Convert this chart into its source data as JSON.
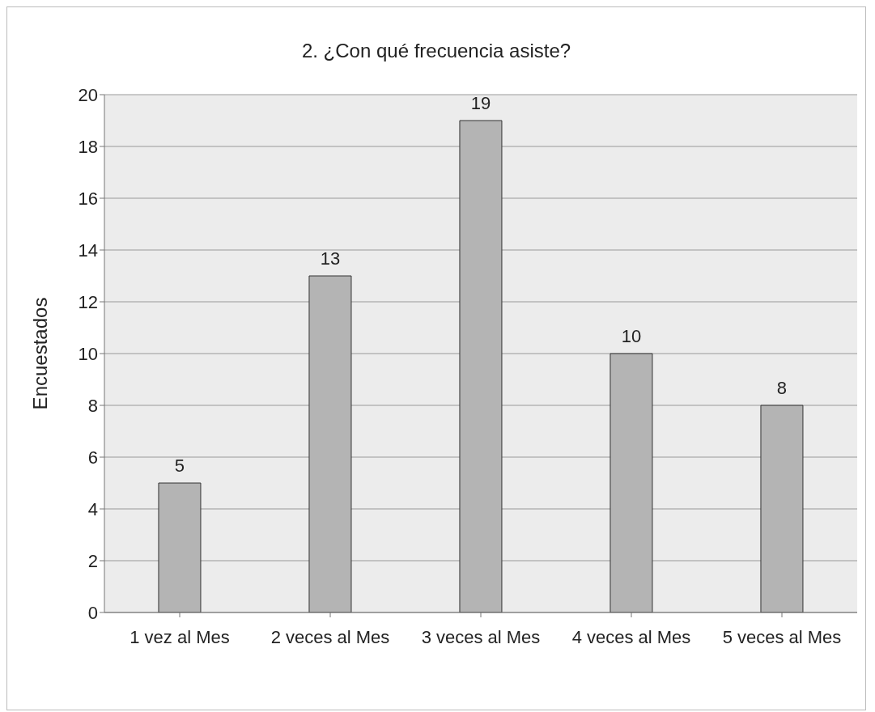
{
  "chart_data": {
    "type": "bar",
    "title": "2. ¿Con qué frecuencia asiste?",
    "ylabel": "Encuestados",
    "categories": [
      "1 vez al Mes",
      "2 veces al Mes",
      "3 veces al Mes",
      "4 veces al Mes",
      "5 veces al Mes"
    ],
    "values": [
      5,
      13,
      19,
      10,
      8
    ],
    "color": "#b4b4b4",
    "ylim": [
      0,
      20
    ],
    "yticks": [
      0,
      2,
      4,
      6,
      8,
      10,
      12,
      14,
      16,
      18,
      20
    ],
    "grid": "y",
    "data_labels": true
  }
}
